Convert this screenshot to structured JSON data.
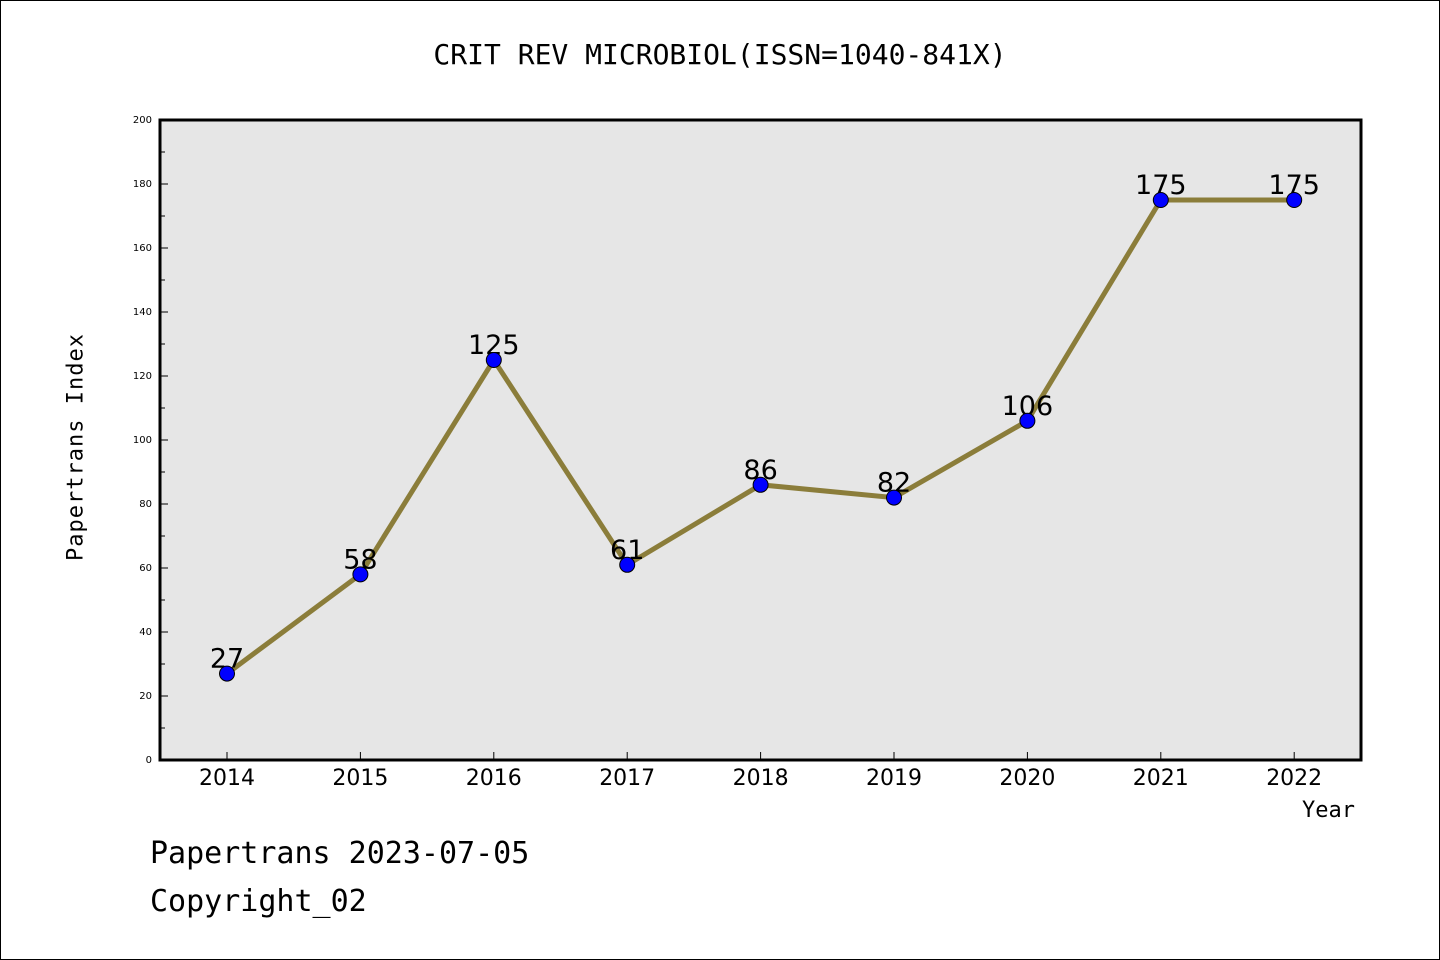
{
  "chart_data": {
    "type": "line",
    "title": "CRIT REV MICROBIOL(ISSN=1040-841X)",
    "xlabel": "Year",
    "ylabel": "Papertrans Index",
    "categories": [
      "2014",
      "2015",
      "2016",
      "2017",
      "2018",
      "2019",
      "2020",
      "2021",
      "2022"
    ],
    "series": [
      {
        "values": [
          27,
          58,
          125,
          61,
          86,
          82,
          106,
          175,
          175
        ]
      }
    ],
    "data_labels": [
      "27",
      "58",
      "125",
      "61",
      "86",
      "82",
      "106",
      "175",
      "175"
    ],
    "ylim": [
      0,
      200
    ],
    "yticks": [
      0,
      20,
      40,
      60,
      80,
      100,
      120,
      140,
      160,
      180,
      200
    ],
    "grid": false,
    "line_color": "#8b7d3a",
    "marker_color": "#0000ff",
    "plot_background": "#e6e6e6"
  },
  "footer": {
    "line1": "Papertrans 2023-07-05",
    "line2": "Copyright_02"
  }
}
